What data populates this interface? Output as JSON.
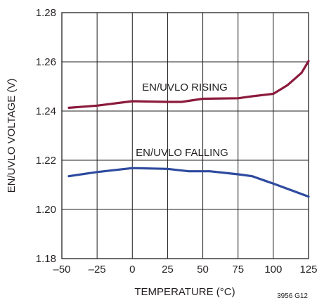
{
  "chart_data": {
    "type": "line",
    "xlabel": "TEMPERATURE (°C)",
    "ylabel": "EN/UVLO VOLTAGE (V)",
    "xlim": [
      -50,
      125
    ],
    "ylim": [
      1.18,
      1.28
    ],
    "x_ticks": [
      "–50",
      "–25",
      "0",
      "25",
      "50",
      "75",
      "100",
      "125"
    ],
    "y_ticks": [
      "1.18",
      "1.20",
      "1.22",
      "1.24",
      "1.26",
      "1.28"
    ],
    "grid": true,
    "figure_id": "3956 G12",
    "series": [
      {
        "name": "EN/UVLO RISING",
        "color": "#8b1a3c",
        "x": [
          -45,
          -25,
          0,
          25,
          35,
          50,
          75,
          85,
          100,
          110,
          120,
          125
        ],
        "y": [
          1.2413,
          1.2422,
          1.244,
          1.2437,
          1.2437,
          1.245,
          1.2452,
          1.246,
          1.247,
          1.2505,
          1.2555,
          1.2603
        ]
      },
      {
        "name": "EN/UVLO FALLING",
        "color": "#2e4a9e",
        "x": [
          -45,
          -25,
          0,
          25,
          40,
          55,
          75,
          85,
          100,
          125
        ],
        "y": [
          1.2135,
          1.2152,
          1.2168,
          1.2165,
          1.2155,
          1.2155,
          1.2143,
          1.2135,
          1.2105,
          1.2052
        ]
      }
    ]
  }
}
